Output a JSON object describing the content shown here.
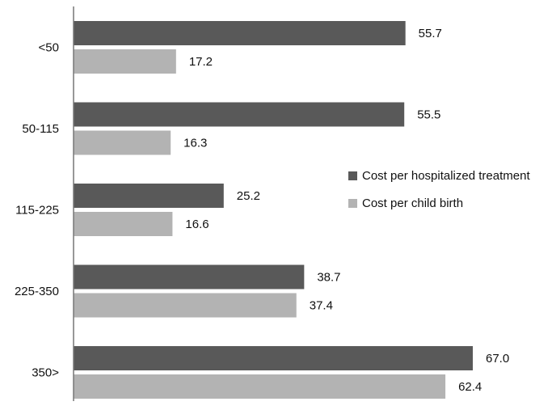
{
  "chart_data": {
    "type": "bar",
    "orientation": "horizontal",
    "categories": [
      "<50",
      "50-115",
      "115-225",
      "225-350",
      "350>"
    ],
    "series": [
      {
        "name": "Cost per hospitalized treatment",
        "values": [
          55.7,
          55.5,
          25.2,
          38.7,
          67.0
        ],
        "labels": [
          "55.7",
          "55.5",
          "25.2",
          "38.7",
          "67.0"
        ],
        "color": "#595959"
      },
      {
        "name": "Cost per child birth",
        "values": [
          17.2,
          16.3,
          16.6,
          37.4,
          62.4
        ],
        "labels": [
          "17.2",
          "16.3",
          "16.6",
          "37.4",
          "62.4"
        ],
        "color": "#b3b3b3"
      }
    ],
    "xlim": [
      0,
      67.0
    ],
    "grid": false,
    "legend_position": "right"
  }
}
